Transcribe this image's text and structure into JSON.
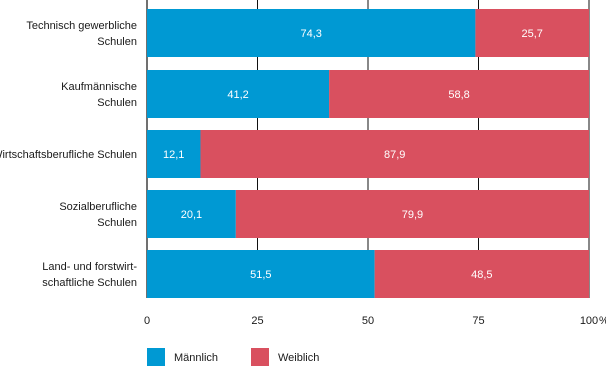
{
  "chart_data": {
    "type": "bar",
    "orientation": "horizontal",
    "stacked": true,
    "categories": [
      [
        "Technisch gewerbliche",
        "Schulen"
      ],
      [
        "Kaufmännische",
        "Schulen"
      ],
      [
        "Wirtschaftsberufliche Schulen"
      ],
      [
        "Sozialberufliche",
        "Schulen"
      ],
      [
        "Land- und forstwirt-",
        "schaftliche Schulen"
      ]
    ],
    "series": [
      {
        "name": "Männlich",
        "color": "#0099d3",
        "values": [
          74.3,
          41.2,
          12.1,
          20.1,
          51.5
        ],
        "labels": [
          "74,3",
          "41,2",
          "12,1",
          "20,1",
          "51,5"
        ]
      },
      {
        "name": "Weiblich",
        "color": "#d9505f",
        "values": [
          25.7,
          58.8,
          87.9,
          79.9,
          48.5
        ],
        "labels": [
          "25,7",
          "58,8",
          "87,9",
          "79,9",
          "48,5"
        ]
      }
    ],
    "xlim": [
      0,
      100
    ],
    "xticks": [
      0,
      25,
      50,
      75,
      100
    ],
    "xtick_labels": [
      "0",
      "25",
      "50",
      "75",
      "100"
    ],
    "x_unit": "%",
    "grid": true,
    "legend_position": "bottom-left"
  }
}
